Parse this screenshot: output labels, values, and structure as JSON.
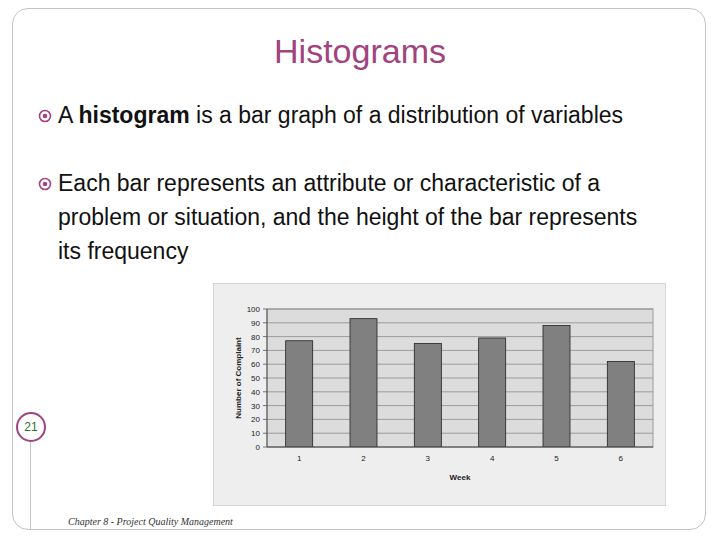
{
  "slide": {
    "title": "Histograms",
    "bullets": [
      {
        "before": "A ",
        "bold": "histogram",
        "after": " is a bar graph of a distribution of variables"
      },
      {
        "text": "Each bar represents an attribute or characteristic of a problem or situation, and the height of the bar represents its frequency"
      }
    ],
    "page_number": 21,
    "footer": "Chapter 8 - Project Quality Management"
  },
  "chart_data": {
    "type": "bar",
    "categories": [
      "1",
      "2",
      "3",
      "4",
      "5",
      "6"
    ],
    "values": [
      77,
      93,
      75,
      79,
      88,
      62
    ],
    "color": "#808080",
    "xlabel": "Week",
    "ylabel": "Number of Complaint",
    "ylim": [
      0,
      100
    ],
    "yticks": [
      0,
      10,
      20,
      30,
      40,
      50,
      60,
      70,
      80,
      90,
      100
    ],
    "grid": true
  }
}
